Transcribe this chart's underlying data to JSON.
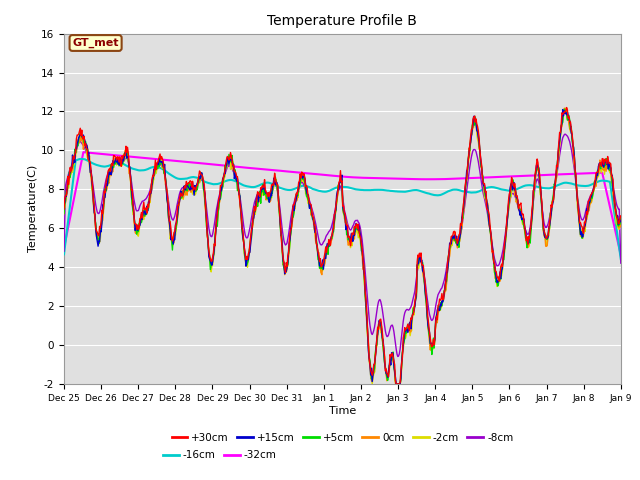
{
  "title": "Temperature Profile B",
  "xlabel": "Time",
  "ylabel": "Temperature(C)",
  "ylim": [
    -2,
    16
  ],
  "background_color": "#ffffff",
  "plot_bg_color": "#e0e0e0",
  "grid_color": "#ffffff",
  "legend_label": "GT_met",
  "legend_box_color": "#ffffcc",
  "legend_box_edge": "#8B4513",
  "series_colors": {
    "+30cm": "#ff0000",
    "+15cm": "#0000cc",
    "+5cm": "#00dd00",
    "0cm": "#ff8800",
    "-2cm": "#dddd00",
    "-8cm": "#9900cc",
    "-16cm": "#00cccc",
    "-32cm": "#ff00ff"
  },
  "xtick_labels": [
    "Dec 25",
    "Dec 26",
    "Dec 27",
    "Dec 28",
    "Dec 29",
    "Dec 30",
    "Dec 31",
    "Jan 1",
    "Jan 2",
    "Jan 3",
    "Jan 4",
    "Jan 5",
    "Jan 6",
    "Jan 7",
    "Jan 8",
    "Jan 9"
  ],
  "ytick_labels": [
    "-2",
    "0",
    "2",
    "4",
    "6",
    "8",
    "10",
    "12",
    "14",
    "16"
  ],
  "ytick_values": [
    -2,
    0,
    2,
    4,
    6,
    8,
    10,
    12,
    14,
    16
  ]
}
